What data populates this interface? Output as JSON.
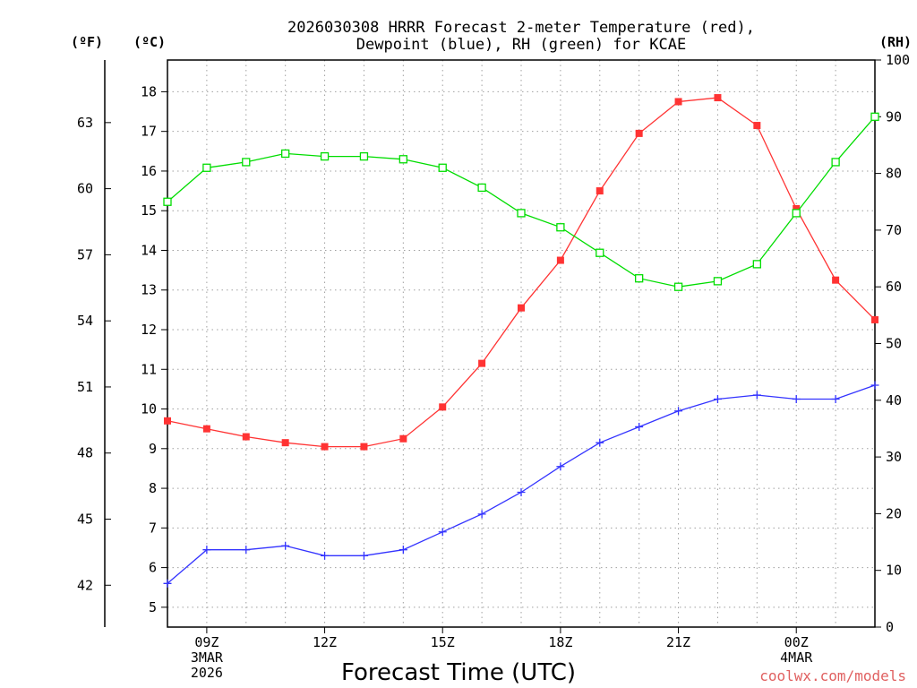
{
  "chart_data": {
    "type": "line",
    "title_line1": "2026030308 HRRR Forecast 2-meter Temperature (red),",
    "title_line2": "Dewpoint (blue), RH (green) for KCAE",
    "xlabel": "Forecast Time (UTC)",
    "credit": "coolwx.com/models",
    "units": {
      "fahrenheit": "(ºF)",
      "celsius": "(ºC)",
      "rh": "(RH)"
    },
    "x_hours": [
      8,
      9,
      10,
      11,
      12,
      13,
      14,
      15,
      16,
      17,
      18,
      19,
      20,
      21,
      22,
      23,
      24,
      25,
      26
    ],
    "xlim": [
      8,
      26
    ],
    "x_ticks": [
      {
        "hour": 9,
        "lines": [
          "09Z",
          "3MAR",
          "2026"
        ]
      },
      {
        "hour": 12,
        "lines": [
          "12Z"
        ]
      },
      {
        "hour": 15,
        "lines": [
          "15Z"
        ]
      },
      {
        "hour": 18,
        "lines": [
          "18Z"
        ]
      },
      {
        "hour": 21,
        "lines": [
          "21Z"
        ]
      },
      {
        "hour": 24,
        "lines": [
          "00Z",
          "4MAR"
        ]
      }
    ],
    "celsius_axis": {
      "range": [
        4.5,
        18.8
      ],
      "ticks": [
        "5",
        "6",
        "7",
        "8",
        "9",
        "10",
        "11",
        "12",
        "13",
        "14",
        "15",
        "16",
        "17",
        "18"
      ]
    },
    "fahrenheit_axis": {
      "ticks": [
        "42",
        "45",
        "48",
        "51",
        "54",
        "57",
        "60",
        "63"
      ]
    },
    "rh_axis": {
      "range": [
        0,
        100
      ],
      "ticks": [
        "0",
        "10",
        "20",
        "30",
        "40",
        "50",
        "60",
        "70",
        "80",
        "90",
        "100"
      ]
    },
    "series": [
      {
        "name": "Temperature",
        "units": "C",
        "color": "#ff3333",
        "marker": "filled-square",
        "values": [
          9.7,
          9.5,
          9.3,
          9.15,
          9.05,
          9.05,
          9.25,
          10.05,
          11.15,
          12.55,
          13.75,
          15.5,
          16.95,
          17.75,
          17.85,
          17.15,
          15.05,
          13.25,
          12.25
        ]
      },
      {
        "name": "Dewpoint",
        "units": "C",
        "color": "#3333ff",
        "marker": "plus",
        "values": [
          5.6,
          6.45,
          6.45,
          6.55,
          6.3,
          6.3,
          6.45,
          6.9,
          7.35,
          7.9,
          8.55,
          9.15,
          9.55,
          9.95,
          10.25,
          10.35,
          10.25,
          10.25,
          10.6
        ]
      },
      {
        "name": "RH",
        "units": "%",
        "color": "#00dd00",
        "marker": "open-square",
        "values": [
          75,
          81,
          82,
          83.5,
          83,
          83,
          82.5,
          81,
          77.5,
          73,
          70.5,
          66,
          61.5,
          60,
          61,
          64,
          73,
          82,
          90
        ]
      }
    ]
  }
}
